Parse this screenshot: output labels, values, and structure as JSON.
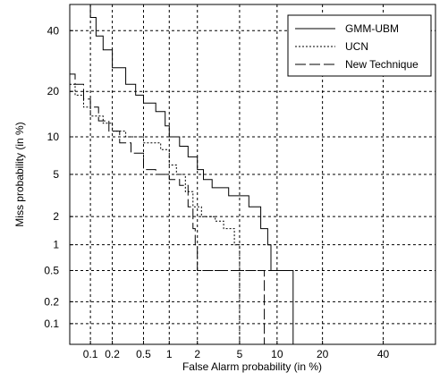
{
  "chart_data": {
    "type": "line",
    "title": "",
    "xlabel": "False Alarm probability (in %)",
    "ylabel": "Miss probability (in %)",
    "x_scale": "probit",
    "y_scale": "probit",
    "xlim": [
      0.05,
      60
    ],
    "ylim": [
      0.05,
      50
    ],
    "x_ticks": [
      0.1,
      0.2,
      0.5,
      1,
      2,
      5,
      10,
      20,
      40
    ],
    "x_tick_labels": [
      "0.1",
      "0.2",
      "0.5",
      "1",
      "2",
      "5",
      "10",
      "20",
      "40"
    ],
    "y_ticks": [
      0.1,
      0.2,
      0.5,
      1,
      2,
      5,
      10,
      20,
      40
    ],
    "y_tick_labels": [
      "0.1",
      "0.2",
      "0.5",
      "1",
      "2",
      "5",
      "10",
      "20",
      "40"
    ],
    "grid": true,
    "legend_position": "top-right",
    "series": [
      {
        "name": "GMM-UBM",
        "style": "solid",
        "points": [
          [
            0.09,
            50
          ],
          [
            0.1,
            45
          ],
          [
            0.12,
            38
          ],
          [
            0.15,
            33
          ],
          [
            0.2,
            27
          ],
          [
            0.3,
            22
          ],
          [
            0.4,
            19
          ],
          [
            0.5,
            17
          ],
          [
            0.7,
            15
          ],
          [
            0.9,
            12
          ],
          [
            1.0,
            10
          ],
          [
            1.3,
            8.5
          ],
          [
            1.6,
            7
          ],
          [
            2.0,
            5.5
          ],
          [
            2.3,
            4.5
          ],
          [
            2.8,
            3.8
          ],
          [
            4,
            3.2
          ],
          [
            6,
            2.5
          ],
          [
            7.5,
            1.5
          ],
          [
            8.5,
            1
          ],
          [
            9,
            0.5
          ],
          [
            13,
            0.5
          ],
          [
            13,
            0.05
          ]
        ]
      },
      {
        "name": "UCN",
        "style": "dotted",
        "points": [
          [
            0.05,
            22
          ],
          [
            0.06,
            19
          ],
          [
            0.08,
            16
          ],
          [
            0.1,
            14
          ],
          [
            0.15,
            12.5
          ],
          [
            0.2,
            11
          ],
          [
            0.3,
            10
          ],
          [
            0.5,
            9
          ],
          [
            0.8,
            8
          ],
          [
            1.0,
            6
          ],
          [
            1.2,
            5
          ],
          [
            1.5,
            3.5
          ],
          [
            1.8,
            2.5
          ],
          [
            2.2,
            2
          ],
          [
            3,
            1.8
          ],
          [
            3.6,
            1.5
          ],
          [
            4.5,
            1
          ],
          [
            5,
            0.5
          ],
          [
            5,
            0.05
          ]
        ]
      },
      {
        "name": "New Technique",
        "style": "dashed",
        "points": [
          [
            0.05,
            25
          ],
          [
            0.06,
            22
          ],
          [
            0.08,
            18
          ],
          [
            0.1,
            16
          ],
          [
            0.13,
            13
          ],
          [
            0.18,
            11
          ],
          [
            0.25,
            9
          ],
          [
            0.35,
            7.5
          ],
          [
            0.5,
            5.5
          ],
          [
            0.7,
            5
          ],
          [
            1.0,
            4.5
          ],
          [
            1.3,
            4
          ],
          [
            1.6,
            2.5
          ],
          [
            1.8,
            1.5
          ],
          [
            1.9,
            1
          ],
          [
            2,
            0.5
          ],
          [
            8,
            0.5
          ],
          [
            8,
            0.05
          ]
        ]
      }
    ]
  }
}
